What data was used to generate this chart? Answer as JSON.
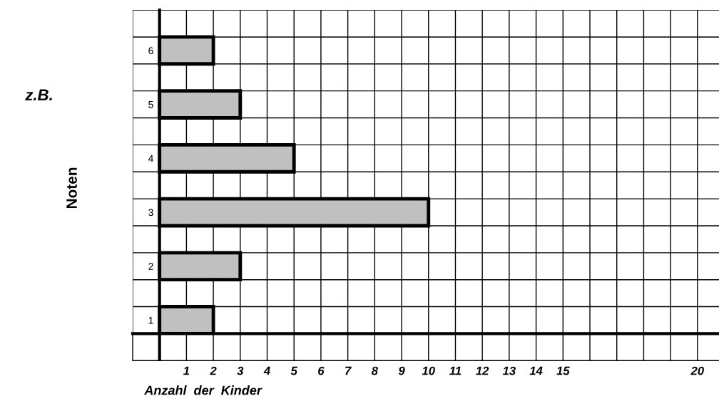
{
  "chart_data": {
    "type": "bar",
    "orientation": "horizontal",
    "categories": [
      "6",
      "5",
      "4",
      "3",
      "2",
      "1"
    ],
    "values": [
      2,
      3,
      5,
      10,
      3,
      2
    ],
    "color": "#c0c0c0",
    "xlabel": "Anzahl  der  Kinder",
    "ylabel": "Noten",
    "annotations": [
      "z.B."
    ],
    "xlim": [
      -1,
      20.8
    ],
    "xticks": [
      {
        "value": 0,
        "label": null
      },
      1,
      2,
      3,
      4,
      5,
      6,
      7,
      8,
      9,
      10,
      11,
      12,
      13,
      14,
      15,
      {
        "value": 16,
        "label": null
      },
      {
        "value": 17,
        "label": null
      },
      {
        "value": 18,
        "label": null
      },
      {
        "value": 19,
        "label": null
      },
      20
    ],
    "grid": true
  }
}
